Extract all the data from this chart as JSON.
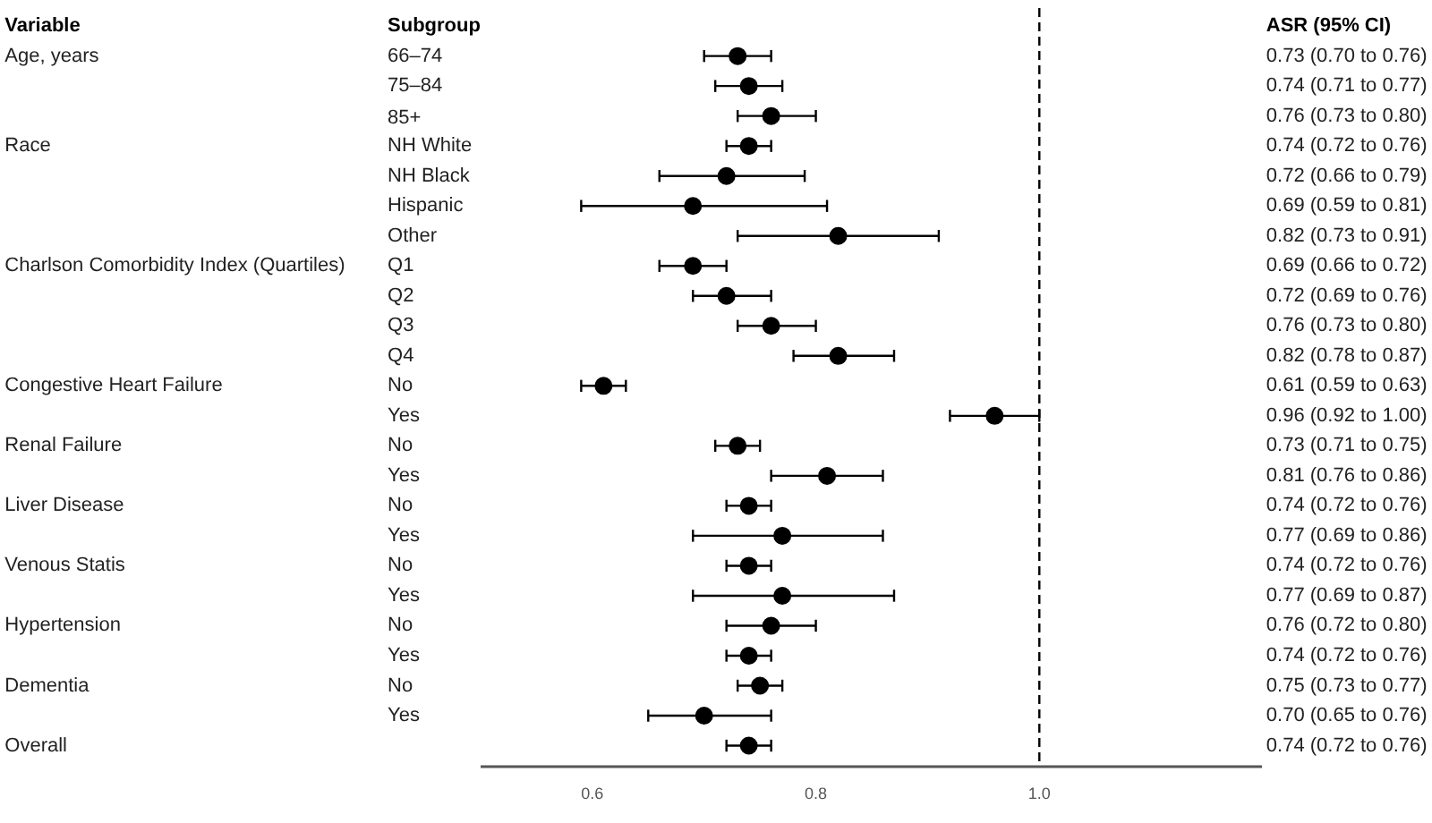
{
  "chart_data": {
    "type": "scatter",
    "orientation": "horizontal",
    "marker": "circle",
    "grid": false,
    "annotations": [
      "Variable",
      "Subgroup",
      "ASR (95% CI)"
    ],
    "categories": [
      "66–74",
      "75–84",
      "85+",
      "NH White",
      "NH Black",
      "Hispanic",
      "Other",
      "Q1",
      "Q2",
      "Q3",
      "Q4",
      "No",
      "Yes",
      "No",
      "Yes",
      "No",
      "Yes",
      "No",
      "Yes",
      "No",
      "Yes",
      "No",
      "Yes",
      null
    ],
    "y2_categories": [
      "Age, years",
      null,
      null,
      "Race",
      null,
      null,
      null,
      "Charlson Comorbidity Index (Quartiles)",
      null,
      null,
      null,
      "Congestive Heart Failure",
      null,
      "Renal Failure",
      null,
      "Liver Disease",
      null,
      "Venous Statis",
      null,
      "Hypertension",
      null,
      "Dementia",
      null,
      "Overall"
    ],
    "series": [
      {
        "color": "#000000",
        "values": [
          0.73,
          0.74,
          0.76,
          0.74,
          0.72,
          0.69,
          0.82,
          0.69,
          0.72,
          0.76,
          0.82,
          0.61,
          0.96,
          0.73,
          0.81,
          0.74,
          0.77,
          0.74,
          0.77,
          0.76,
          0.74,
          0.75,
          0.7,
          0.74
        ],
        "errors": [
          [
            0.7,
            0.76
          ],
          [
            0.71,
            0.77
          ],
          [
            0.73,
            0.8
          ],
          [
            0.72,
            0.76
          ],
          [
            0.66,
            0.79
          ],
          [
            0.59,
            0.81
          ],
          [
            0.73,
            0.91
          ],
          [
            0.66,
            0.72
          ],
          [
            0.69,
            0.76
          ],
          [
            0.73,
            0.8
          ],
          [
            0.78,
            0.87
          ],
          [
            0.59,
            0.63
          ],
          [
            0.92,
            1.0
          ],
          [
            0.71,
            0.75
          ],
          [
            0.76,
            0.86
          ],
          [
            0.72,
            0.76
          ],
          [
            0.69,
            0.86
          ],
          [
            0.72,
            0.76
          ],
          [
            0.69,
            0.87
          ],
          [
            0.72,
            0.8
          ],
          [
            0.72,
            0.76
          ],
          [
            0.73,
            0.77
          ],
          [
            0.65,
            0.76
          ],
          [
            0.72,
            0.76
          ]
        ],
        "value_labels": [
          "0.73 (0.70 to 0.76)",
          "0.74 (0.71 to 0.77)",
          "0.76 (0.73 to 0.80)",
          "0.74 (0.72 to 0.76)",
          "0.72 (0.66 to 0.79)",
          "0.69 (0.59 to 0.81)",
          "0.82 (0.73 to 0.91)",
          "0.69 (0.66 to 0.72)",
          "0.72 (0.69 to 0.76)",
          "0.76 (0.73 to 0.80)",
          "0.82 (0.78 to 0.87)",
          "0.61 (0.59 to 0.63)",
          "0.96 (0.92 to 1.00)",
          "0.73 (0.71 to 0.75)",
          "0.81 (0.76 to 0.86)",
          "0.74 (0.72 to 0.76)",
          "0.77 (0.69 to 0.86)",
          "0.74 (0.72 to 0.76)",
          "0.77 (0.69 to 0.87)",
          "0.76 (0.72 to 0.80)",
          "0.74 (0.72 to 0.76)",
          "0.75 (0.73 to 0.77)",
          "0.70 (0.65 to 0.76)",
          "0.74 (0.72 to 0.76)"
        ]
      }
    ],
    "xlim": [
      0.5,
      1.2
    ],
    "xticks": [
      0.6,
      0.8,
      {
        "value": 1.0,
        "label": "1.0"
      }
    ],
    "ref_lines": [
      {
        "axis": "x",
        "value": 1.0,
        "color": "#000000",
        "line_style": "dashed"
      }
    ]
  }
}
